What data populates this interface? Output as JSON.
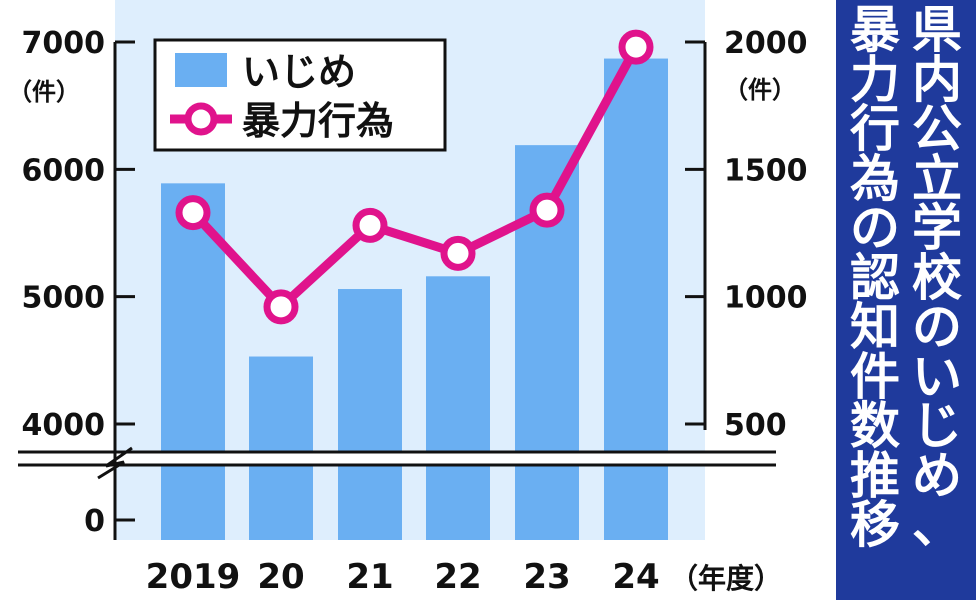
{
  "chart_data": {
    "type": "bar+line",
    "categories": [
      "2019",
      "20",
      "21",
      "22",
      "23",
      "24"
    ],
    "category_suffix": "（年度）",
    "series": [
      {
        "name": "いじめ",
        "kind": "bar",
        "axis": "left",
        "color": "#6aaff2",
        "values": [
          5890,
          4530,
          5060,
          5160,
          6190,
          6870
        ]
      },
      {
        "name": "暴力行為",
        "kind": "line",
        "axis": "right",
        "color": "#e0138c",
        "values": [
          1330,
          960,
          1280,
          1170,
          1340,
          1980
        ]
      }
    ],
    "y_left": {
      "unit": "（件）",
      "ticks": [
        "7000",
        "6000",
        "5000",
        "4000",
        "0"
      ],
      "range": [
        4000,
        7000
      ],
      "break": true
    },
    "y_right": {
      "unit": "（件）",
      "ticks": [
        "2000",
        "1500",
        "1000",
        "500"
      ],
      "range": [
        500,
        2000
      ]
    },
    "legend": {
      "position": "top-left"
    },
    "grid": false
  },
  "title": [
    "県内公立学校のいじめ、",
    "暴力行為の認知件数推移"
  ],
  "colors": {
    "panel": "#1f3a9c",
    "bar": "#6aaff2",
    "line": "#e0138c",
    "background": "#deeefd"
  }
}
